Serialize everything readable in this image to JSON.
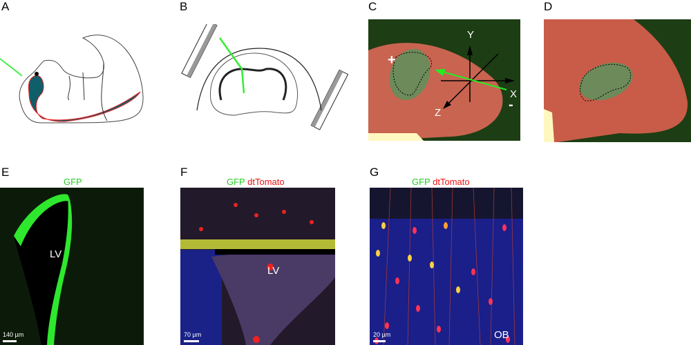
{
  "panels": {
    "A": {
      "label": "A"
    },
    "B": {
      "label": "B"
    },
    "C": {
      "label": "C",
      "axes": {
        "x": "X",
        "y": "Y",
        "z": "Z"
      },
      "plus": "+",
      "minus": "-"
    },
    "D": {
      "label": "D"
    },
    "E": {
      "label": "E",
      "channel": "GFP",
      "region": "LV",
      "scalebar": "140 µm"
    },
    "F": {
      "label": "F",
      "channel_green": "GFP",
      "channel_red": "dtTomato",
      "region": "LV",
      "scalebar": "70 µm"
    },
    "G": {
      "label": "G",
      "channel_green": "GFP",
      "channel_red": "dtTomato",
      "region": "OB",
      "scalebar": "20 µm"
    }
  },
  "colors": {
    "gfp": "#22cc22",
    "tomato": "#ee1111",
    "ventricle": "#0e5f6a",
    "dapi": "#2233aa"
  }
}
